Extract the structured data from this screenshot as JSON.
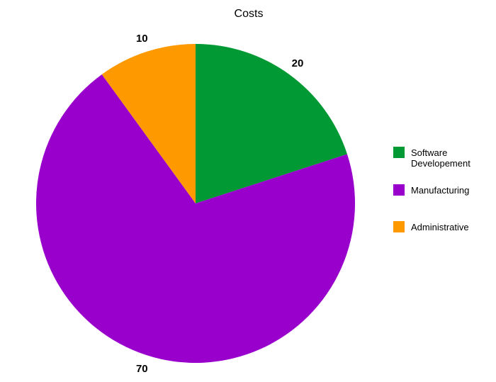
{
  "chart_data": {
    "type": "pie",
    "title": "Costs",
    "categories": [
      "Software Developement",
      "Manufacturing",
      "Administrative"
    ],
    "values": [
      20,
      70,
      10
    ],
    "data_labels": [
      "20",
      "70",
      "10"
    ],
    "colors": [
      "#009933",
      "#9900cc",
      "#ff9900"
    ],
    "start_angle_deg": 0,
    "direction": "clockwise",
    "legend": {
      "placement": "right",
      "entries": [
        {
          "lines": [
            "Software",
            "Developement"
          ],
          "color": "#009933"
        },
        {
          "lines": [
            "Manufacturing"
          ],
          "color": "#9900cc"
        },
        {
          "lines": [
            "Administrative"
          ],
          "color": "#ff9900"
        }
      ]
    }
  }
}
